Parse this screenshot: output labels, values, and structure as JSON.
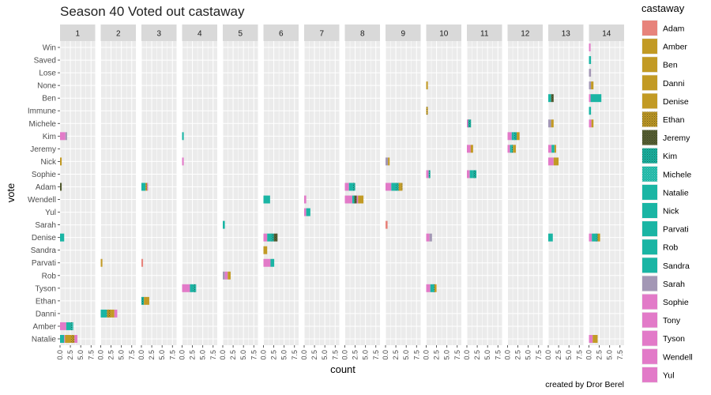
{
  "chart_data": {
    "type": "bar",
    "orientation": "horizontal",
    "stacked": true,
    "faceted": true,
    "title": "Season 40 Voted out castaway",
    "xlabel": "count",
    "ylabel": "vote",
    "caption": "created by Dror Berel",
    "facets": [
      "1",
      "2",
      "3",
      "4",
      "5",
      "6",
      "7",
      "8",
      "9",
      "10",
      "11",
      "12",
      "13",
      "14"
    ],
    "xticks": [
      "0.0",
      "2.5",
      "5.0",
      "7.5"
    ],
    "xlim": [
      0,
      8.5
    ],
    "grid": true,
    "legend": {
      "title": "castaway",
      "position": "right"
    },
    "categories": [
      "Win",
      "Saved",
      "Lose",
      "None",
      "Ben",
      "Immune",
      "Michele",
      "Kim",
      "Jeremy",
      "Nick",
      "Sophie",
      "Adam",
      "Wendell",
      "Yul",
      "Sarah",
      "Denise",
      "Sandra",
      "Parvati",
      "Rob",
      "Tyson",
      "Ethan",
      "Danni",
      "Amber",
      "Natalie"
    ],
    "castaways": [
      {
        "name": "Adam",
        "color": "#e7837b",
        "pattern": "none"
      },
      {
        "name": "Amber",
        "color": "#c29a24",
        "pattern": "none"
      },
      {
        "name": "Ben",
        "color": "#c29a24",
        "pattern": "none"
      },
      {
        "name": "Danni",
        "color": "#c29a24",
        "pattern": "none"
      },
      {
        "name": "Denise",
        "color": "#c29a24",
        "pattern": "none"
      },
      {
        "name": "Ethan",
        "color": "#c29a24",
        "pattern": "stipple"
      },
      {
        "name": "Jeremy",
        "color": "#586032",
        "pattern": "stipple"
      },
      {
        "name": "Kim",
        "color": "#1ab5a4",
        "pattern": "stipple"
      },
      {
        "name": "Michele",
        "color": "#1ab5a4",
        "pattern": "light"
      },
      {
        "name": "Natalie",
        "color": "#1ab5a4",
        "pattern": "none"
      },
      {
        "name": "Nick",
        "color": "#1ab5a4",
        "pattern": "none"
      },
      {
        "name": "Parvati",
        "color": "#1ab5a4",
        "pattern": "none"
      },
      {
        "name": "Rob",
        "color": "#1ab5a4",
        "pattern": "none"
      },
      {
        "name": "Sandra",
        "color": "#1ab5a4",
        "pattern": "none"
      },
      {
        "name": "Sarah",
        "color": "#a397b5",
        "pattern": "none"
      },
      {
        "name": "Sophie",
        "color": "#e27ac8",
        "pattern": "none"
      },
      {
        "name": "Tony",
        "color": "#e27ac8",
        "pattern": "none"
      },
      {
        "name": "Tyson",
        "color": "#e27ac8",
        "pattern": "none"
      },
      {
        "name": "Wendell",
        "color": "#e27ac8",
        "pattern": "none"
      },
      {
        "name": "Yul",
        "color": "#e27ac8",
        "pattern": "none"
      }
    ],
    "bars": [
      {
        "facet": "1",
        "vote": "Kim",
        "segments": [
          [
            "Sophie",
            1.3
          ],
          [
            "Sarah",
            0.4
          ]
        ]
      },
      {
        "facet": "1",
        "vote": "Nick",
        "segments": [
          [
            "Danni",
            0.4
          ]
        ]
      },
      {
        "facet": "1",
        "vote": "Adam",
        "segments": [
          [
            "Jeremy",
            0.4
          ]
        ]
      },
      {
        "facet": "1",
        "vote": "Denise",
        "segments": [
          [
            "Natalie",
            1.0
          ]
        ]
      },
      {
        "facet": "1",
        "vote": "Amber",
        "segments": [
          [
            "Sophie",
            1.5
          ],
          [
            "Natalie",
            1.0
          ],
          [
            "Kim",
            0.4
          ],
          [
            "Michele",
            0.3
          ]
        ]
      },
      {
        "facet": "1",
        "vote": "Natalie",
        "segments": [
          [
            "Natalie",
            1.0
          ],
          [
            "Sophie",
            0.2
          ],
          [
            "Danni",
            1.5
          ],
          [
            "Ethan",
            0.8
          ],
          [
            "Sophie",
            0.7
          ]
        ]
      },
      {
        "facet": "2",
        "vote": "Parvati",
        "segments": [
          [
            "Danni",
            0.4
          ]
        ]
      },
      {
        "facet": "2",
        "vote": "Danni",
        "segments": [
          [
            "Natalie",
            1.5
          ],
          [
            "Ethan",
            0.9
          ],
          [
            "Danni",
            0.9
          ],
          [
            "Sophie",
            0.7
          ]
        ]
      },
      {
        "facet": "3",
        "vote": "Adam",
        "segments": [
          [
            "Natalie",
            1.0
          ],
          [
            "Ethan",
            0.4
          ],
          [
            "Sophie",
            0.2
          ]
        ]
      },
      {
        "facet": "3",
        "vote": "Parvati",
        "segments": [
          [
            "Adam",
            0.4
          ]
        ]
      },
      {
        "facet": "3",
        "vote": "Ethan",
        "segments": [
          [
            "Kim",
            0.6
          ],
          [
            "Danni",
            1.3
          ]
        ]
      },
      {
        "facet": "4",
        "vote": "Kim",
        "segments": [
          [
            "Natalie",
            0.4
          ]
        ]
      },
      {
        "facet": "4",
        "vote": "Nick",
        "segments": [
          [
            "Sophie",
            0.4
          ]
        ]
      },
      {
        "facet": "4",
        "vote": "Tyson",
        "segments": [
          [
            "Sophie",
            1.9
          ],
          [
            "Natalie",
            0.7
          ],
          [
            "Kim",
            0.6
          ],
          [
            "Natalie",
            0.2
          ]
        ]
      },
      {
        "facet": "5",
        "vote": "Sarah",
        "segments": [
          [
            "Natalie",
            0.5
          ]
        ]
      },
      {
        "facet": "5",
        "vote": "Rob",
        "segments": [
          [
            "Sarah",
            0.5
          ],
          [
            "Sophie",
            0.7
          ],
          [
            "Danni",
            0.7
          ]
        ]
      },
      {
        "facet": "6",
        "vote": "Wendell",
        "segments": [
          [
            "Natalie",
            1.6
          ]
        ]
      },
      {
        "facet": "6",
        "vote": "Denise",
        "segments": [
          [
            "Sophie",
            0.9
          ],
          [
            "Natalie",
            1.0
          ],
          [
            "Kim",
            0.6
          ],
          [
            "Jeremy",
            0.9
          ]
        ]
      },
      {
        "facet": "6",
        "vote": "Sandra",
        "segments": [
          [
            "Danni",
            0.9
          ]
        ]
      },
      {
        "facet": "6",
        "vote": "Parvati",
        "segments": [
          [
            "Sophie",
            1.7
          ],
          [
            "Natalie",
            0.9
          ]
        ]
      },
      {
        "facet": "7",
        "vote": "Wendell",
        "segments": [
          [
            "Sophie",
            0.5
          ]
        ]
      },
      {
        "facet": "7",
        "vote": "Yul",
        "segments": [
          [
            "Sophie",
            0.5
          ],
          [
            "Natalie",
            1.0
          ]
        ]
      },
      {
        "facet": "8",
        "vote": "Adam",
        "segments": [
          [
            "Sophie",
            1.0
          ],
          [
            "Natalie",
            1.0
          ],
          [
            "Kim",
            0.5
          ]
        ]
      },
      {
        "facet": "8",
        "vote": "Wendell",
        "segments": [
          [
            "Sophie",
            1.8
          ],
          [
            "Natalie",
            0.5
          ],
          [
            "Jeremy",
            0.6
          ],
          [
            "Sophie",
            0.3
          ],
          [
            "Danni",
            1.3
          ]
        ]
      },
      {
        "facet": "9",
        "vote": "Nick",
        "segments": [
          [
            "Sarah",
            0.6
          ],
          [
            "Danni",
            0.4
          ]
        ]
      },
      {
        "facet": "9",
        "vote": "Adam",
        "segments": [
          [
            "Sophie",
            1.4
          ],
          [
            "Natalie",
            1.1
          ],
          [
            "Kim",
            0.7
          ],
          [
            "Danni",
            0.6
          ],
          [
            "Ethan",
            0.3
          ]
        ]
      },
      {
        "facet": "9",
        "vote": "Sarah",
        "segments": [
          [
            "Adam",
            0.5
          ]
        ]
      },
      {
        "facet": "10",
        "vote": "None",
        "segments": [
          [
            "Danni",
            0.4
          ]
        ]
      },
      {
        "facet": "10",
        "vote": "Immune",
        "segments": [
          [
            "Ethan",
            0.4
          ]
        ]
      },
      {
        "facet": "10",
        "vote": "Sophie",
        "segments": [
          [
            "Sophie",
            0.6
          ],
          [
            "Kim",
            0.4
          ]
        ]
      },
      {
        "facet": "10",
        "vote": "Denise",
        "segments": [
          [
            "Sophie",
            0.8
          ],
          [
            "Sarah",
            0.6
          ]
        ]
      },
      {
        "facet": "10",
        "vote": "Tyson",
        "segments": [
          [
            "Sophie",
            1.0
          ],
          [
            "Natalie",
            0.7
          ],
          [
            "Kim",
            0.3
          ],
          [
            "Danni",
            0.5
          ]
        ]
      },
      {
        "facet": "11",
        "vote": "Michele",
        "segments": [
          [
            "Sophie",
            0.3
          ],
          [
            "Kim",
            0.7
          ]
        ]
      },
      {
        "facet": "11",
        "vote": "Jeremy",
        "segments": [
          [
            "Sophie",
            0.9
          ],
          [
            "Danni",
            0.6
          ]
        ]
      },
      {
        "facet": "11",
        "vote": "Sophie",
        "segments": [
          [
            "Sophie",
            0.7
          ],
          [
            "Natalie",
            0.8
          ],
          [
            "Kim",
            0.8
          ]
        ]
      },
      {
        "facet": "12",
        "vote": "Kim",
        "segments": [
          [
            "Sophie",
            1.0
          ],
          [
            "Natalie",
            0.6
          ],
          [
            "Kim",
            0.6
          ],
          [
            "Danni",
            0.7
          ]
        ]
      },
      {
        "facet": "12",
        "vote": "Jeremy",
        "segments": [
          [
            "Sophie",
            0.6
          ],
          [
            "Natalie",
            0.4
          ],
          [
            "Kim",
            0.3
          ],
          [
            "Danni",
            0.7
          ]
        ]
      },
      {
        "facet": "13",
        "vote": "Ben",
        "segments": [
          [
            "Natalie",
            0.7
          ],
          [
            "Jeremy",
            0.6
          ]
        ]
      },
      {
        "facet": "13",
        "vote": "Michele",
        "segments": [
          [
            "Sarah",
            0.7
          ],
          [
            "Danni",
            0.6
          ]
        ]
      },
      {
        "facet": "13",
        "vote": "Jeremy",
        "segments": [
          [
            "Sophie",
            0.8
          ],
          [
            "Natalie",
            0.7
          ],
          [
            "Danni",
            0.4
          ]
        ]
      },
      {
        "facet": "13",
        "vote": "Nick",
        "segments": [
          [
            "Sophie",
            1.3
          ],
          [
            "Danni",
            1.2
          ]
        ]
      },
      {
        "facet": "13",
        "vote": "Denise",
        "segments": [
          [
            "Natalie",
            1.1
          ]
        ]
      },
      {
        "facet": "14",
        "vote": "Win",
        "segments": [
          [
            "Sophie",
            0.4
          ]
        ]
      },
      {
        "facet": "14",
        "vote": "Saved",
        "segments": [
          [
            "Natalie",
            0.5
          ]
        ]
      },
      {
        "facet": "14",
        "vote": "Lose",
        "segments": [
          [
            "Sarah",
            0.5
          ]
        ]
      },
      {
        "facet": "14",
        "vote": "None",
        "segments": [
          [
            "Sarah",
            0.5
          ],
          [
            "Danni",
            0.6
          ]
        ]
      },
      {
        "facet": "14",
        "vote": "Ben",
        "segments": [
          [
            "Sophie",
            0.4
          ],
          [
            "Natalie",
            2.6
          ]
        ]
      },
      {
        "facet": "14",
        "vote": "Immune",
        "segments": [
          [
            "Natalie",
            0.5
          ]
        ]
      },
      {
        "facet": "14",
        "vote": "Michele",
        "segments": [
          [
            "Sophie",
            0.6
          ],
          [
            "Danni",
            0.5
          ]
        ]
      },
      {
        "facet": "14",
        "vote": "Denise",
        "segments": [
          [
            "Sophie",
            0.7
          ],
          [
            "Natalie",
            1.0
          ],
          [
            "Kim",
            0.4
          ],
          [
            "Danni",
            0.6
          ]
        ]
      },
      {
        "facet": "14",
        "vote": "Natalie",
        "segments": [
          [
            "Sophie",
            0.9
          ],
          [
            "Danni",
            1.2
          ]
        ]
      }
    ]
  }
}
